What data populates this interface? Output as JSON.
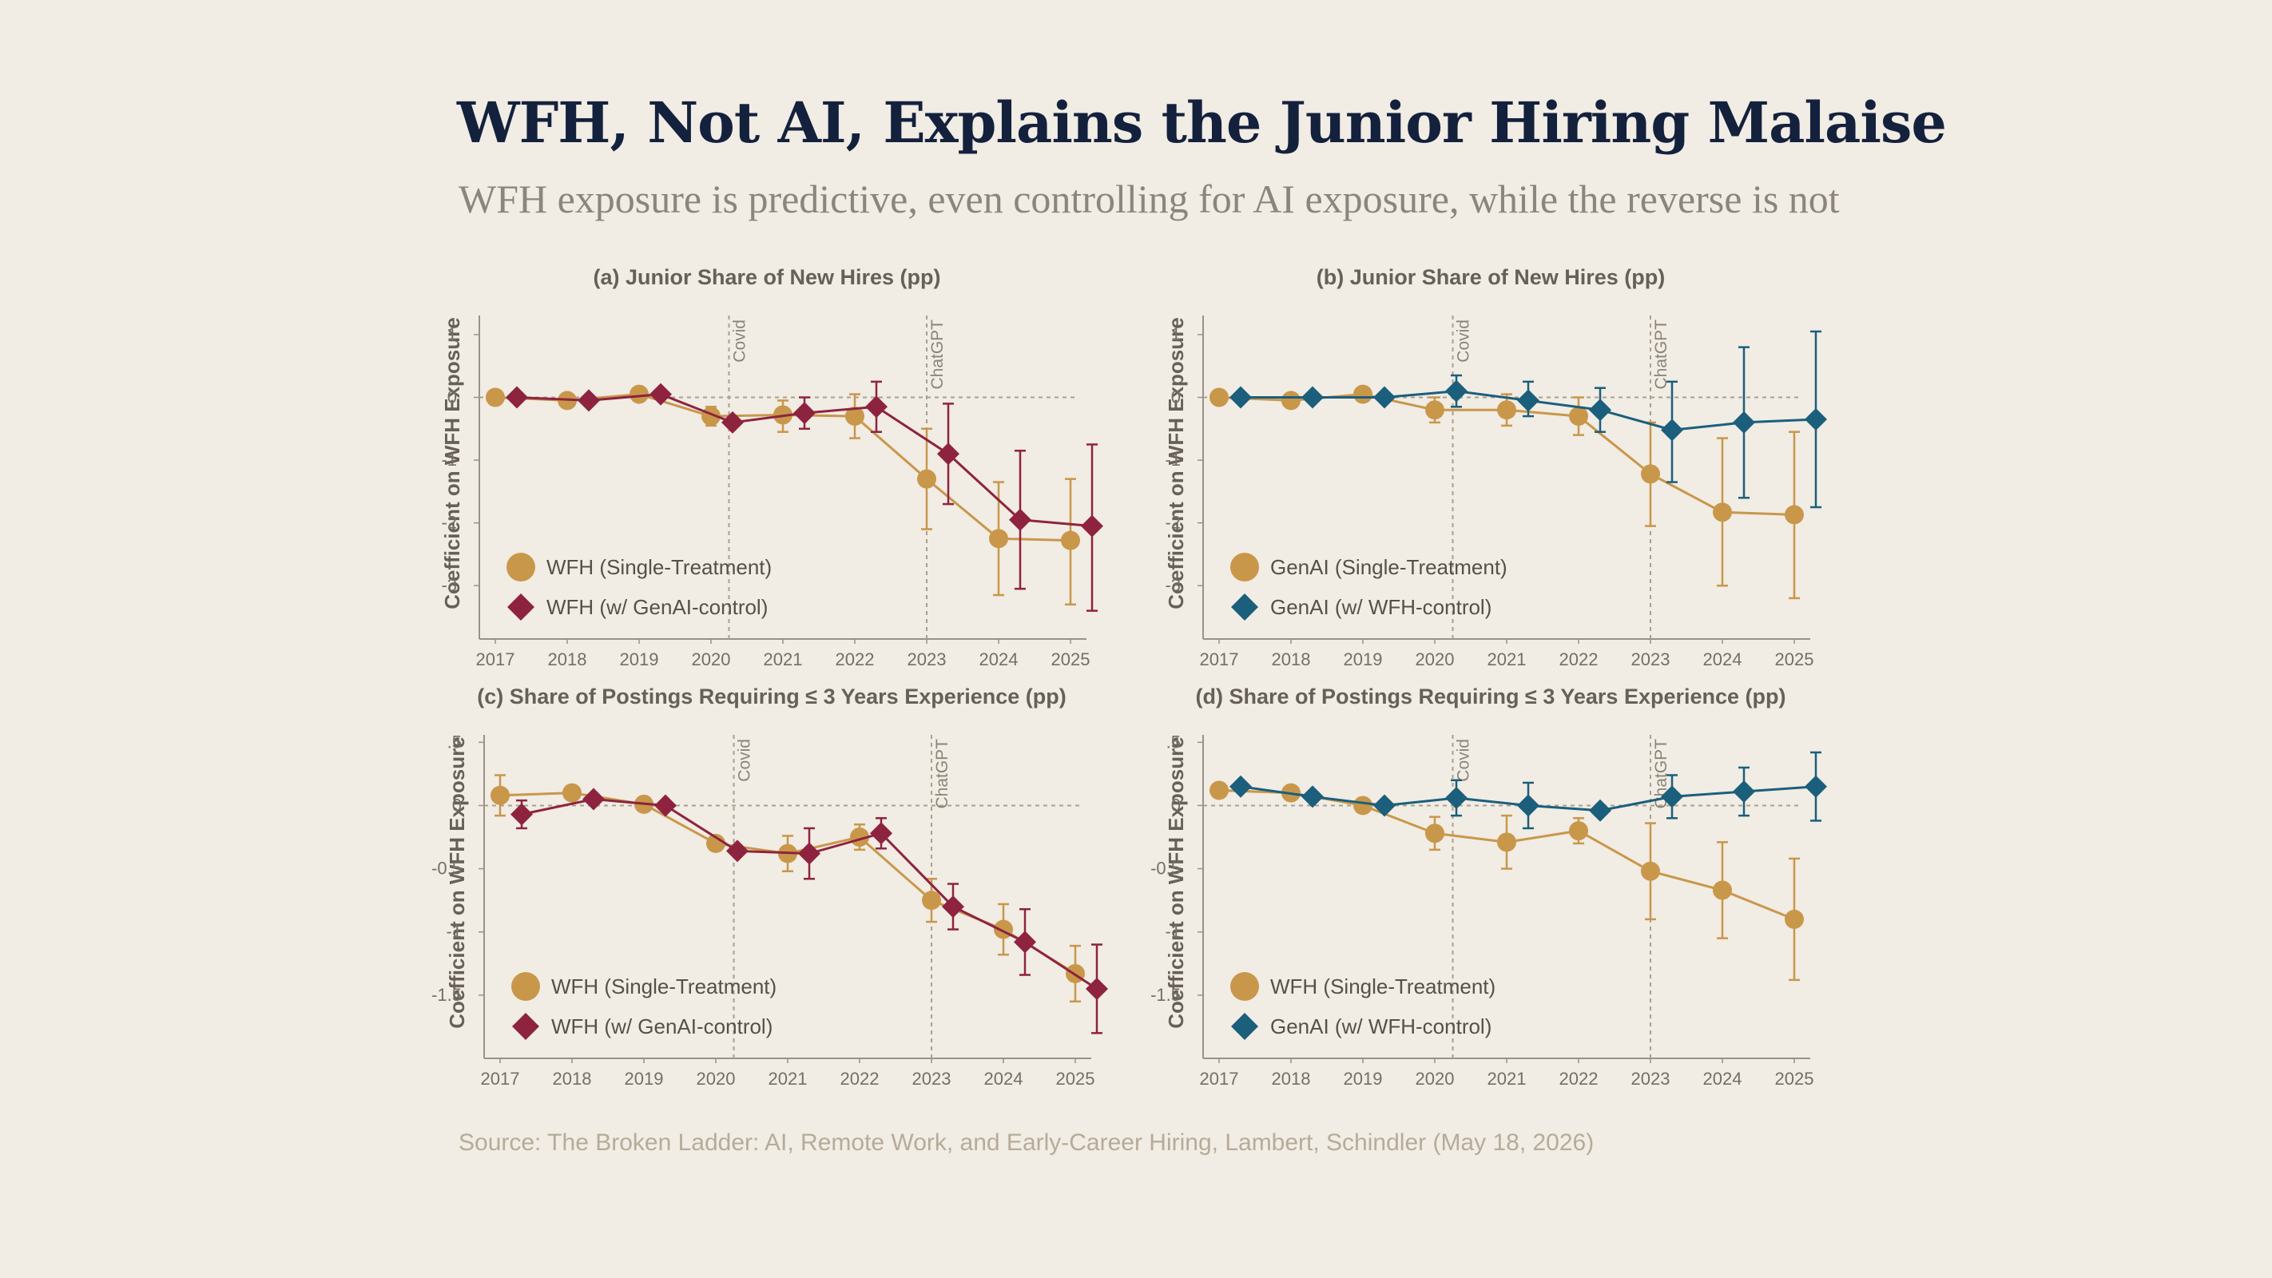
{
  "header": {
    "title": "WFH, Not AI, Explains the Junior Hiring Malaise",
    "subtitle": "WFH exposure is predictive, even controlling for AI exposure, while the reverse is not"
  },
  "source": "Source: The Broken Ladder: AI, Remote Work, and Early-Career Hiring, Lambert, Schindler (May 18, 2026)",
  "colors": {
    "gold": "#c9974a",
    "crimson": "#8e2340",
    "teal": "#1b5f7c",
    "axis": "#9a9288",
    "ref": "#a99f8e"
  },
  "chart_data": [
    {
      "type": "line",
      "title": "(a) Junior Share of New Hires (pp)",
      "ylabel": "Coefficient on WFH Exposure",
      "x": [
        "2017",
        "2018",
        "2019",
        "2020",
        "2021",
        "2022",
        "2023",
        "2024",
        "2025"
      ],
      "ylim": [
        -3.85,
        1.75
      ],
      "yticks": [
        1,
        0,
        -1,
        -2,
        -3
      ],
      "ytick_labels": [
        "1",
        "0",
        "-1",
        "-2",
        "-3"
      ],
      "events": [
        {
          "label": "Covid",
          "x": 2020.25
        },
        {
          "label": "ChatGPT",
          "x": 2023
        }
      ],
      "series": [
        {
          "name": "WFH (Single-Treatment)",
          "marker": "circle",
          "color": "#c9974a",
          "x": [
            2017,
            2018,
            2019,
            2020,
            2021,
            2022,
            2023,
            2024,
            2025
          ],
          "values": [
            0.0,
            -0.05,
            0.05,
            -0.3,
            -0.28,
            -0.3,
            -1.3,
            -2.25,
            -2.28
          ],
          "lower": [
            null,
            null,
            null,
            -0.45,
            -0.55,
            -0.65,
            -2.1,
            -3.15,
            -3.3
          ],
          "upper": [
            null,
            null,
            null,
            -0.15,
            -0.05,
            0.05,
            -0.5,
            -1.35,
            -1.3
          ]
        },
        {
          "name": "WFH (w/ GenAI-control)",
          "marker": "diamond",
          "color": "#8e2340",
          "x": [
            2017.3,
            2018.3,
            2019.3,
            2020.3,
            2021.3,
            2022.3,
            2023.3,
            2024.3,
            2025.3
          ],
          "values": [
            0.0,
            -0.05,
            0.05,
            -0.4,
            -0.25,
            -0.15,
            -0.9,
            -1.95,
            -2.05
          ],
          "lower": [
            null,
            null,
            null,
            null,
            -0.5,
            -0.55,
            -1.7,
            -3.05,
            -3.4
          ],
          "upper": [
            null,
            null,
            null,
            null,
            0.0,
            0.25,
            -0.1,
            -0.85,
            -0.75
          ]
        }
      ]
    },
    {
      "type": "line",
      "title": "(b) Junior Share of New Hires (pp)",
      "ylabel": "Coefficient on WFH Exposure",
      "x": [
        "2017",
        "2018",
        "2019",
        "2020",
        "2021",
        "2022",
        "2023",
        "2024",
        "2025"
      ],
      "ylim": [
        -3.85,
        1.75
      ],
      "yticks": [
        1,
        0,
        -1,
        -2,
        -3
      ],
      "ytick_labels": [
        "1",
        "0",
        "-1",
        "-2",
        "-3"
      ],
      "events": [
        {
          "label": "Covid",
          "x": 2020.25
        },
        {
          "label": "ChatGPT",
          "x": 2023
        }
      ],
      "series": [
        {
          "name": "GenAI (Single-Treatment)",
          "marker": "circle",
          "color": "#c9974a",
          "x": [
            2017,
            2018,
            2019,
            2020,
            2021,
            2022,
            2023,
            2024,
            2025
          ],
          "values": [
            0.0,
            -0.05,
            0.05,
            -0.2,
            -0.2,
            -0.3,
            -1.22,
            -1.83,
            -1.87
          ],
          "lower": [
            null,
            null,
            null,
            -0.4,
            -0.45,
            -0.6,
            -2.05,
            -3.0,
            -3.2
          ],
          "upper": [
            null,
            null,
            null,
            0.0,
            0.05,
            0.0,
            -0.4,
            -0.65,
            -0.55
          ]
        },
        {
          "name": "GenAI (w/ WFH-control)",
          "marker": "diamond",
          "color": "#1b5f7c",
          "x": [
            2017.3,
            2018.3,
            2019.3,
            2020.3,
            2021.3,
            2022.3,
            2023.3,
            2024.3,
            2025.3
          ],
          "values": [
            0.0,
            0.0,
            0.0,
            0.1,
            -0.05,
            -0.2,
            -0.52,
            -0.4,
            -0.35
          ],
          "lower": [
            null,
            null,
            null,
            -0.15,
            -0.3,
            -0.55,
            -1.35,
            -1.6,
            -1.75
          ],
          "upper": [
            null,
            null,
            null,
            0.35,
            0.25,
            0.15,
            0.25,
            0.8,
            1.05
          ]
        }
      ]
    },
    {
      "type": "line",
      "title": "(c) Share of Postings Requiring ≤ 3 Years Experience (pp)",
      "ylabel": "Coefficient on WFH Exposure",
      "x": [
        "2017",
        "2018",
        "2019",
        "2020",
        "2021",
        "2022",
        "2023",
        "2024",
        "2025"
      ],
      "ylim": [
        -2.0,
        0.78
      ],
      "yticks": [
        0.5,
        0,
        -0.5,
        -1,
        -1.5
      ],
      "ytick_labels": [
        ".5",
        "0",
        "-0.5",
        "-1",
        "-1.5"
      ],
      "events": [
        {
          "label": "Covid",
          "x": 2020.25
        },
        {
          "label": "ChatGPT",
          "x": 2023
        }
      ],
      "series": [
        {
          "name": "WFH (Single-Treatment)",
          "marker": "circle",
          "color": "#c9974a",
          "x": [
            2017,
            2018,
            2019,
            2020,
            2021,
            2022,
            2023,
            2024,
            2025
          ],
          "values": [
            0.08,
            0.1,
            0.01,
            -0.3,
            -0.38,
            -0.25,
            -0.75,
            -0.98,
            -1.33
          ],
          "lower": [
            -0.08,
            null,
            null,
            null,
            -0.52,
            -0.35,
            -0.92,
            -1.18,
            -1.55
          ],
          "upper": [
            0.24,
            null,
            null,
            null,
            -0.24,
            -0.15,
            -0.58,
            -0.78,
            -1.11
          ]
        },
        {
          "name": "WFH (w/ GenAI-control)",
          "marker": "diamond",
          "color": "#8e2340",
          "x": [
            2017.3,
            2018.3,
            2019.3,
            2020.3,
            2021.3,
            2022.3,
            2023.3,
            2024.3,
            2025.3
          ],
          "values": [
            -0.07,
            0.05,
            0.0,
            -0.36,
            -0.38,
            -0.22,
            -0.8,
            -1.08,
            -1.45
          ],
          "lower": [
            -0.18,
            null,
            null,
            null,
            -0.58,
            -0.34,
            -0.98,
            -1.34,
            -1.8
          ],
          "upper": [
            0.04,
            null,
            null,
            null,
            -0.18,
            -0.1,
            -0.62,
            -0.82,
            -1.1
          ]
        }
      ]
    },
    {
      "type": "line",
      "title": "(d) Share of Postings Requiring ≤ 3 Years Experience (pp)",
      "ylabel": "Coefficient on WFH Exposure",
      "x": [
        "2017",
        "2018",
        "2019",
        "2020",
        "2021",
        "2022",
        "2023",
        "2024",
        "2025"
      ],
      "ylim": [
        -2.0,
        0.78
      ],
      "yticks": [
        0.5,
        0,
        -0.5,
        -1,
        -1.5
      ],
      "ytick_labels": [
        ".5",
        "0",
        "-0.5",
        "-1",
        "-1.5"
      ],
      "events": [
        {
          "label": "Covid",
          "x": 2020.25
        },
        {
          "label": "ChatGPT",
          "x": 2023
        }
      ],
      "series": [
        {
          "name": "WFH (Single-Treatment)",
          "marker": "circle",
          "color": "#c9974a",
          "x": [
            2017,
            2018,
            2019,
            2020,
            2021,
            2022,
            2023,
            2024,
            2025
          ],
          "values": [
            0.12,
            0.1,
            0.0,
            -0.22,
            -0.29,
            -0.2,
            -0.52,
            -0.67,
            -0.9
          ],
          "lower": [
            null,
            null,
            null,
            -0.35,
            -0.5,
            -0.3,
            -0.9,
            -1.05,
            -1.38
          ],
          "upper": [
            null,
            null,
            null,
            -0.09,
            -0.08,
            -0.1,
            -0.14,
            -0.29,
            -0.42
          ]
        },
        {
          "name": "GenAI (w/ WFH-control)",
          "marker": "diamond",
          "color": "#1b5f7c",
          "x": [
            2017.3,
            2018.3,
            2019.3,
            2020.3,
            2021.3,
            2022.3,
            2023.3,
            2024.3,
            2025.3
          ],
          "values": [
            0.15,
            0.07,
            0.0,
            0.06,
            0.0,
            -0.04,
            0.07,
            0.11,
            0.15
          ],
          "lower": [
            null,
            null,
            null,
            -0.08,
            -0.18,
            null,
            -0.1,
            -0.08,
            -0.12
          ],
          "upper": [
            null,
            null,
            null,
            0.2,
            0.18,
            null,
            0.24,
            0.3,
            0.42
          ]
        }
      ]
    }
  ]
}
